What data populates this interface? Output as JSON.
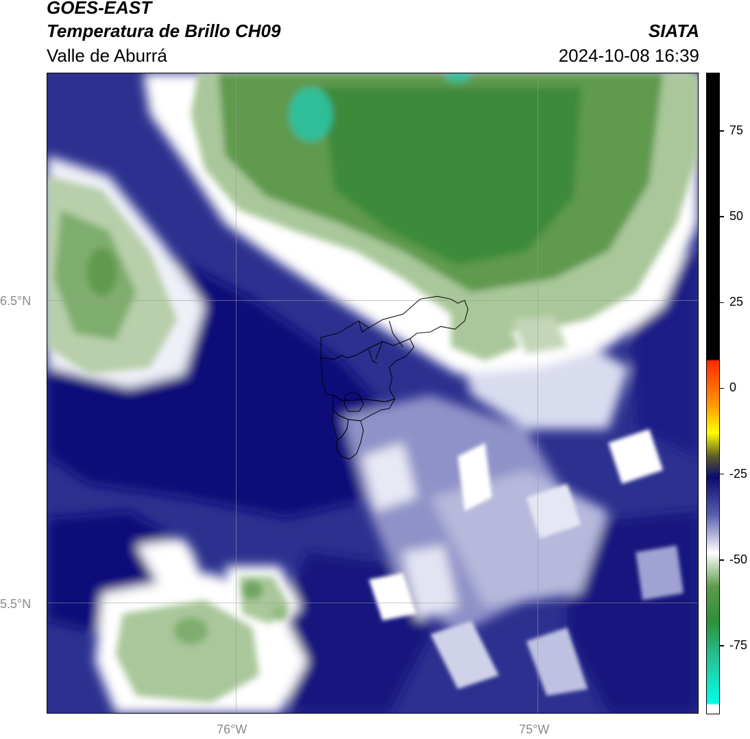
{
  "header": {
    "satellite": "GOES-EAST",
    "product": "Temperatura de Brillo CH09",
    "region": "Valle de Aburrá",
    "organization": "SIATA",
    "timestamp": "2024-10-08 16:39"
  },
  "map": {
    "lat_labels": [
      {
        "value": 6.5,
        "text": "6.5°N"
      },
      {
        "value": 5.5,
        "text": "5.5°N"
      }
    ],
    "lon_labels": [
      {
        "value": -76,
        "text": "76°W"
      },
      {
        "value": -75,
        "text": "75°W"
      }
    ],
    "extent": {
      "lon_min": -76.62,
      "lon_max": -74.47,
      "lat_min": 5.2,
      "lat_max": 7.25
    },
    "colors": {
      "deep_blue": "#0b0f7a",
      "mid_blue": "#3a3f9f",
      "light_lavender": "#c6c8e6",
      "white": "#ffffff",
      "light_green": "#a9c79a",
      "mid_green": "#5f9a4e",
      "dark_green": "#3d8a3a",
      "teal": "#2fbf9a",
      "boundary": "#000000"
    }
  },
  "colorbar": {
    "ticks": [
      {
        "value": 75,
        "text": "75"
      },
      {
        "value": 50,
        "text": "50"
      },
      {
        "value": 25,
        "text": "25"
      },
      {
        "value": 0,
        "text": "0"
      },
      {
        "value": -25,
        "text": "-25"
      },
      {
        "value": -50,
        "text": "-50"
      },
      {
        "value": -75,
        "text": "-75"
      }
    ],
    "range": [
      -95,
      92
    ],
    "stops": [
      {
        "value": 92,
        "color": "#000000"
      },
      {
        "value": 8.5,
        "color": "#000000"
      },
      {
        "value": 8,
        "color": "#ff2a00"
      },
      {
        "value": -5,
        "color": "#ff9a00"
      },
      {
        "value": -13,
        "color": "#ffff00"
      },
      {
        "value": -20,
        "color": "#5a5a2a"
      },
      {
        "value": -26,
        "color": "#0a0a70"
      },
      {
        "value": -37,
        "color": "#5a5faf"
      },
      {
        "value": -48,
        "color": "#ffffff"
      },
      {
        "value": -58,
        "color": "#5e9a4c"
      },
      {
        "value": -68,
        "color": "#2f8f3a"
      },
      {
        "value": -80,
        "color": "#25c8a0"
      },
      {
        "value": -92,
        "color": "#00ffe6"
      },
      {
        "value": -92.5,
        "color": "#ffffff"
      },
      {
        "value": -95,
        "color": "#ffffff"
      }
    ]
  }
}
